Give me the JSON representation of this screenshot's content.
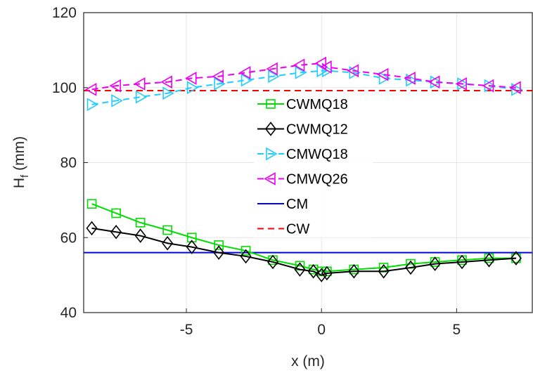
{
  "chart_data": {
    "type": "line",
    "xlabel": "x (m)",
    "ylabel": "H",
    "ylabel_sub": "f",
    "ylabel_unit": "(mm)",
    "xlim": [
      -8.8,
      7.8
    ],
    "ylim": [
      40,
      120
    ],
    "xticks": [
      -5,
      0,
      5
    ],
    "yticks": [
      40,
      60,
      80,
      100,
      120
    ],
    "xtick_labels": [
      "-5",
      "0",
      "5"
    ],
    "ytick_labels": [
      "40",
      "60",
      "80",
      "100",
      "120"
    ],
    "grid": true,
    "legend_position": "center",
    "series": [
      {
        "name": "CWMQ18",
        "color": "#00dd00",
        "line": "solid",
        "marker": "square",
        "x": [
          -8.5,
          -7.6,
          -6.7,
          -5.7,
          -4.8,
          -3.8,
          -2.8,
          -1.8,
          -0.8,
          -0.3,
          0,
          0.2,
          1.2,
          2.3,
          3.3,
          4.2,
          5.2,
          6.2,
          7.2
        ],
        "y": [
          69,
          66.5,
          64,
          62,
          60,
          58,
          56.5,
          54,
          52.5,
          51.5,
          51,
          51,
          51.5,
          52,
          53,
          53.5,
          54,
          54.5,
          54.5
        ]
      },
      {
        "name": "CWMQ12",
        "color": "#000000",
        "line": "solid",
        "marker": "diamond",
        "x": [
          -8.5,
          -7.6,
          -6.7,
          -5.7,
          -4.8,
          -3.8,
          -2.8,
          -1.8,
          -0.8,
          -0.3,
          0,
          0.2,
          1.2,
          2.3,
          3.3,
          4.2,
          5.2,
          6.2,
          7.2
        ],
        "y": [
          62.5,
          61.5,
          60.5,
          58.5,
          57.5,
          56,
          55,
          53.5,
          51.5,
          51,
          50,
          50.5,
          51,
          51,
          52,
          53,
          53.5,
          54,
          54.5
        ]
      },
      {
        "name": "CMWQ18",
        "color": "#22ccff",
        "line": "dashed",
        "marker": "triangle-right",
        "x": [
          -8.5,
          -7.6,
          -6.7,
          -5.7,
          -4.8,
          -3.8,
          -2.8,
          -1.8,
          -0.8,
          0,
          0.2,
          1.2,
          2.3,
          3.3,
          4.2,
          5.2,
          6.2,
          7.2
        ],
        "y": [
          95.5,
          96.5,
          97.5,
          98.5,
          100,
          101,
          102,
          103,
          104,
          104.5,
          104.5,
          104,
          102.5,
          102,
          101.5,
          101,
          100.5,
          99.5
        ]
      },
      {
        "name": "CMWQ26",
        "color": "#ee00ee",
        "line": "dashed",
        "marker": "triangle-left",
        "x": [
          -8.5,
          -7.6,
          -6.7,
          -5.7,
          -4.8,
          -3.8,
          -2.8,
          -1.8,
          -0.8,
          0,
          0.2,
          1.2,
          2.3,
          3.3,
          4.2,
          5.2,
          6.2,
          7.2
        ],
        "y": [
          99.5,
          100.5,
          101,
          101.5,
          102.5,
          103,
          104,
          105,
          106,
          106.5,
          105.5,
          104.5,
          103.5,
          102.5,
          101.5,
          101,
          100.5,
          100
        ]
      }
    ],
    "reference_lines": [
      {
        "name": "CM",
        "color": "#0000ff",
        "line": "solid",
        "y": 56
      },
      {
        "name": "CW",
        "color": "#ff0000",
        "line": "dashed",
        "y": 99.2
      }
    ]
  }
}
